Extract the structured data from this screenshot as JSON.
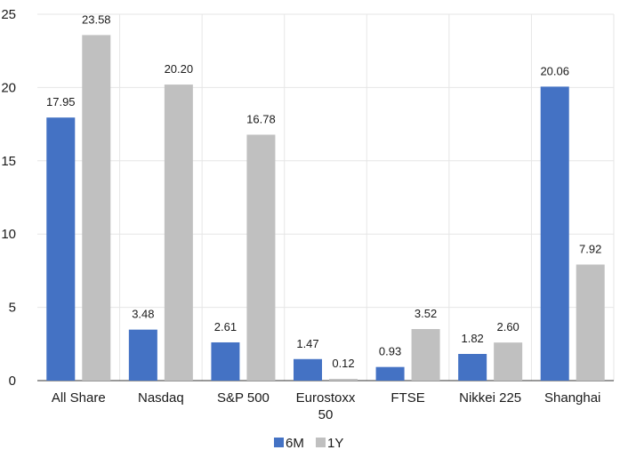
{
  "chart_data": {
    "type": "bar",
    "title": "",
    "xlabel": "",
    "ylabel": "",
    "categories": [
      [
        "All Share"
      ],
      [
        "Nasdaq"
      ],
      [
        "S&P 500"
      ],
      [
        "Eurostoxx",
        "50"
      ],
      [
        "FTSE"
      ],
      [
        "Nikkei 225"
      ],
      [
        "Shanghai"
      ]
    ],
    "series": [
      {
        "name": "6M",
        "color": "#4472c4",
        "values": [
          17.95,
          3.48,
          2.61,
          1.47,
          0.93,
          1.82,
          20.06
        ],
        "labels": [
          "17.95",
          "3.48",
          "2.61",
          "1.47",
          "0.93",
          "1.82",
          "20.06"
        ]
      },
      {
        "name": "1Y",
        "color": "#c0c0c0",
        "values": [
          23.58,
          20.2,
          16.78,
          0.12,
          3.52,
          2.6,
          7.92
        ],
        "labels": [
          "23.58",
          "20.20",
          "16.78",
          "0.12",
          "3.52",
          "2.60",
          "7.92"
        ]
      }
    ],
    "ylim": [
      0,
      25
    ],
    "yticks": [
      0,
      5,
      10,
      15,
      20,
      25
    ],
    "grid": true,
    "legend_position": "bottom-center"
  }
}
